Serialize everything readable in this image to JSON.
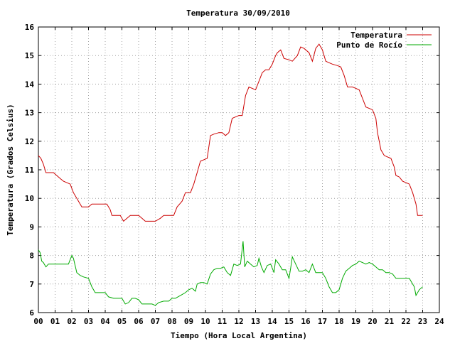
{
  "chart_data": {
    "type": "line",
    "title": "Temperatura 30/09/2010",
    "xlabel": "Tiempo (Hora Local Argentina)",
    "ylabel": "Temperatura (Grados Celsius)",
    "xlim": [
      0,
      24
    ],
    "ylim": [
      6,
      16
    ],
    "x_ticks": [
      "00",
      "01",
      "02",
      "03",
      "04",
      "05",
      "06",
      "07",
      "08",
      "09",
      "10",
      "11",
      "12",
      "13",
      "14",
      "15",
      "16",
      "17",
      "18",
      "19",
      "20",
      "21",
      "22",
      "23",
      "24"
    ],
    "y_ticks": [
      "6",
      "7",
      "8",
      "9",
      "10",
      "11",
      "12",
      "13",
      "14",
      "15",
      "16"
    ],
    "grid": true,
    "legend_position": "top-right",
    "series": [
      {
        "name": "Temperatura",
        "color": "#cc0000",
        "points": [
          [
            0.0,
            11.5
          ],
          [
            0.15,
            11.4
          ],
          [
            0.3,
            11.2
          ],
          [
            0.45,
            10.9
          ],
          [
            0.7,
            10.9
          ],
          [
            0.9,
            10.9
          ],
          [
            1.1,
            10.8
          ],
          [
            1.3,
            10.7
          ],
          [
            1.5,
            10.6
          ],
          [
            1.7,
            10.55
          ],
          [
            1.9,
            10.5
          ],
          [
            2.1,
            10.2
          ],
          [
            2.4,
            9.9
          ],
          [
            2.6,
            9.7
          ],
          [
            2.8,
            9.7
          ],
          [
            3.0,
            9.7
          ],
          [
            3.2,
            9.8
          ],
          [
            3.5,
            9.8
          ],
          [
            3.8,
            9.8
          ],
          [
            4.1,
            9.8
          ],
          [
            4.3,
            9.6
          ],
          [
            4.4,
            9.4
          ],
          [
            4.7,
            9.4
          ],
          [
            4.9,
            9.4
          ],
          [
            5.1,
            9.2
          ],
          [
            5.3,
            9.3
          ],
          [
            5.5,
            9.4
          ],
          [
            5.8,
            9.4
          ],
          [
            6.0,
            9.4
          ],
          [
            6.2,
            9.3
          ],
          [
            6.4,
            9.2
          ],
          [
            6.7,
            9.2
          ],
          [
            7.0,
            9.2
          ],
          [
            7.3,
            9.3
          ],
          [
            7.5,
            9.4
          ],
          [
            7.8,
            9.4
          ],
          [
            8.1,
            9.4
          ],
          [
            8.3,
            9.7
          ],
          [
            8.6,
            9.9
          ],
          [
            8.8,
            10.2
          ],
          [
            9.1,
            10.2
          ],
          [
            9.3,
            10.5
          ],
          [
            9.5,
            10.9
          ],
          [
            9.7,
            11.3
          ],
          [
            9.9,
            11.35
          ],
          [
            10.1,
            11.4
          ],
          [
            10.3,
            12.2
          ],
          [
            10.5,
            12.25
          ],
          [
            10.8,
            12.3
          ],
          [
            11.0,
            12.3
          ],
          [
            11.2,
            12.2
          ],
          [
            11.4,
            12.3
          ],
          [
            11.6,
            12.8
          ],
          [
            11.8,
            12.85
          ],
          [
            12.0,
            12.9
          ],
          [
            12.2,
            12.9
          ],
          [
            12.4,
            13.6
          ],
          [
            12.6,
            13.9
          ],
          [
            12.8,
            13.85
          ],
          [
            13.0,
            13.8
          ],
          [
            13.2,
            14.1
          ],
          [
            13.4,
            14.4
          ],
          [
            13.6,
            14.5
          ],
          [
            13.8,
            14.5
          ],
          [
            14.0,
            14.7
          ],
          [
            14.2,
            15.0
          ],
          [
            14.3,
            15.1
          ],
          [
            14.5,
            15.2
          ],
          [
            14.7,
            14.9
          ],
          [
            15.0,
            14.85
          ],
          [
            15.2,
            14.8
          ],
          [
            15.5,
            15.0
          ],
          [
            15.7,
            15.3
          ],
          [
            15.9,
            15.25
          ],
          [
            16.2,
            15.1
          ],
          [
            16.4,
            14.8
          ],
          [
            16.6,
            15.25
          ],
          [
            16.8,
            15.4
          ],
          [
            17.0,
            15.2
          ],
          [
            17.2,
            14.8
          ],
          [
            17.4,
            14.75
          ],
          [
            17.6,
            14.7
          ],
          [
            17.9,
            14.65
          ],
          [
            18.1,
            14.6
          ],
          [
            18.3,
            14.3
          ],
          [
            18.5,
            13.9
          ],
          [
            18.8,
            13.9
          ],
          [
            19.0,
            13.85
          ],
          [
            19.2,
            13.8
          ],
          [
            19.4,
            13.5
          ],
          [
            19.6,
            13.2
          ],
          [
            19.8,
            13.15
          ],
          [
            20.0,
            13.1
          ],
          [
            20.2,
            12.8
          ],
          [
            20.3,
            12.3
          ],
          [
            20.5,
            11.7
          ],
          [
            20.7,
            11.5
          ],
          [
            20.9,
            11.45
          ],
          [
            21.1,
            11.4
          ],
          [
            21.3,
            11.1
          ],
          [
            21.4,
            10.8
          ],
          [
            21.6,
            10.75
          ],
          [
            21.8,
            10.6
          ],
          [
            22.0,
            10.55
          ],
          [
            22.2,
            10.5
          ],
          [
            22.4,
            10.2
          ],
          [
            22.6,
            9.8
          ],
          [
            22.7,
            9.4
          ],
          [
            23.0,
            9.4
          ]
        ]
      },
      {
        "name": "Punto de Rocío",
        "color": "#00aa00",
        "points": [
          [
            0.0,
            8.2
          ],
          [
            0.1,
            8.1
          ],
          [
            0.2,
            7.8
          ],
          [
            0.3,
            7.75
          ],
          [
            0.45,
            7.6
          ],
          [
            0.6,
            7.7
          ],
          [
            0.8,
            7.7
          ],
          [
            1.0,
            7.7
          ],
          [
            1.2,
            7.7
          ],
          [
            1.4,
            7.7
          ],
          [
            1.6,
            7.7
          ],
          [
            1.8,
            7.7
          ],
          [
            2.0,
            8.0
          ],
          [
            2.1,
            7.9
          ],
          [
            2.3,
            7.4
          ],
          [
            2.5,
            7.3
          ],
          [
            2.7,
            7.25
          ],
          [
            3.0,
            7.2
          ],
          [
            3.2,
            6.9
          ],
          [
            3.4,
            6.7
          ],
          [
            3.7,
            6.7
          ],
          [
            4.0,
            6.7
          ],
          [
            4.2,
            6.55
          ],
          [
            4.5,
            6.5
          ],
          [
            4.8,
            6.5
          ],
          [
            5.0,
            6.5
          ],
          [
            5.2,
            6.3
          ],
          [
            5.4,
            6.35
          ],
          [
            5.6,
            6.5
          ],
          [
            5.8,
            6.5
          ],
          [
            6.0,
            6.45
          ],
          [
            6.2,
            6.3
          ],
          [
            6.5,
            6.3
          ],
          [
            6.8,
            6.3
          ],
          [
            7.0,
            6.25
          ],
          [
            7.2,
            6.35
          ],
          [
            7.5,
            6.4
          ],
          [
            7.8,
            6.4
          ],
          [
            8.0,
            6.5
          ],
          [
            8.2,
            6.5
          ],
          [
            8.5,
            6.6
          ],
          [
            8.8,
            6.7
          ],
          [
            9.0,
            6.8
          ],
          [
            9.2,
            6.85
          ],
          [
            9.4,
            6.75
          ],
          [
            9.5,
            7.0
          ],
          [
            9.7,
            7.05
          ],
          [
            9.9,
            7.05
          ],
          [
            10.1,
            7.0
          ],
          [
            10.3,
            7.35
          ],
          [
            10.5,
            7.5
          ],
          [
            10.7,
            7.55
          ],
          [
            10.9,
            7.55
          ],
          [
            11.1,
            7.6
          ],
          [
            11.3,
            7.4
          ],
          [
            11.5,
            7.3
          ],
          [
            11.7,
            7.7
          ],
          [
            11.9,
            7.65
          ],
          [
            12.1,
            7.7
          ],
          [
            12.25,
            8.5
          ],
          [
            12.35,
            7.6
          ],
          [
            12.5,
            7.8
          ],
          [
            12.7,
            7.7
          ],
          [
            12.9,
            7.6
          ],
          [
            13.1,
            7.65
          ],
          [
            13.2,
            7.9
          ],
          [
            13.35,
            7.6
          ],
          [
            13.5,
            7.4
          ],
          [
            13.7,
            7.65
          ],
          [
            13.9,
            7.7
          ],
          [
            14.1,
            7.4
          ],
          [
            14.2,
            7.85
          ],
          [
            14.4,
            7.7
          ],
          [
            14.6,
            7.5
          ],
          [
            14.8,
            7.5
          ],
          [
            15.0,
            7.2
          ],
          [
            15.1,
            7.55
          ],
          [
            15.2,
            7.95
          ],
          [
            15.4,
            7.7
          ],
          [
            15.6,
            7.45
          ],
          [
            15.8,
            7.45
          ],
          [
            16.0,
            7.5
          ],
          [
            16.2,
            7.4
          ],
          [
            16.4,
            7.7
          ],
          [
            16.6,
            7.4
          ],
          [
            16.8,
            7.4
          ],
          [
            17.0,
            7.4
          ],
          [
            17.2,
            7.2
          ],
          [
            17.4,
            6.9
          ],
          [
            17.6,
            6.7
          ],
          [
            17.8,
            6.7
          ],
          [
            18.0,
            6.8
          ],
          [
            18.2,
            7.2
          ],
          [
            18.4,
            7.45
          ],
          [
            18.6,
            7.55
          ],
          [
            18.8,
            7.65
          ],
          [
            19.0,
            7.7
          ],
          [
            19.2,
            7.8
          ],
          [
            19.4,
            7.75
          ],
          [
            19.6,
            7.7
          ],
          [
            19.8,
            7.75
          ],
          [
            20.0,
            7.7
          ],
          [
            20.2,
            7.6
          ],
          [
            20.4,
            7.5
          ],
          [
            20.6,
            7.5
          ],
          [
            20.8,
            7.4
          ],
          [
            21.0,
            7.4
          ],
          [
            21.2,
            7.35
          ],
          [
            21.4,
            7.2
          ],
          [
            21.6,
            7.2
          ],
          [
            21.8,
            7.2
          ],
          [
            22.0,
            7.2
          ],
          [
            22.2,
            7.2
          ],
          [
            22.4,
            7.0
          ],
          [
            22.5,
            6.9
          ],
          [
            22.6,
            6.6
          ],
          [
            22.8,
            6.8
          ],
          [
            23.0,
            6.9
          ]
        ]
      }
    ]
  }
}
